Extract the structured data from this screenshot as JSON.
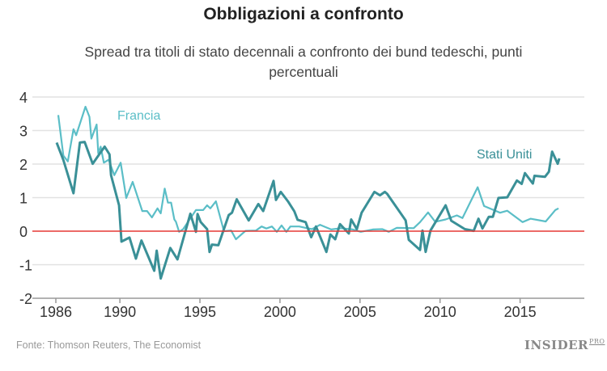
{
  "title": "Obbligazioni a confronto",
  "subtitle": "Spread tra titoli di stato decennali a confronto dei bund tedeschi, punti percentuali",
  "source": "Fonte: Thomson Reuters, The Economist",
  "logo": {
    "main": "INSIDER",
    "suffix": "PRO"
  },
  "chart_data": {
    "type": "line",
    "title": "Obbligazioni a confronto",
    "subtitle": "Spread tra titoli di stato decennali a confronto dei bund tedeschi, punti percentuali",
    "xlim": [
      1985.6,
      2019.5
    ],
    "ylim": [
      -2,
      4
    ],
    "x_ticks": [
      1986,
      1990,
      1995,
      2000,
      2005,
      2010,
      2015
    ],
    "x_tick_labels": [
      "1986",
      "1990",
      "1995",
      "2000",
      "2005",
      "2010",
      "2015"
    ],
    "y_ticks": [
      -2,
      -1,
      0,
      1,
      2,
      3,
      4
    ],
    "y_tick_labels": [
      "-2",
      "-1",
      "0",
      "1",
      "2",
      "3",
      "4"
    ],
    "grid": "horizontal",
    "reference_line": {
      "y": 0,
      "color": "#e53935"
    },
    "series": [
      {
        "name": "Francia",
        "color": "#5bbec7",
        "points": [
          [
            1986.15,
            3.46
          ],
          [
            1986.47,
            2.25
          ],
          [
            1986.75,
            2.08
          ],
          [
            1987.1,
            3.04
          ],
          [
            1987.27,
            2.86
          ],
          [
            1987.85,
            3.71
          ],
          [
            1988.1,
            3.41
          ],
          [
            1988.22,
            2.76
          ],
          [
            1988.55,
            3.18
          ],
          [
            1988.65,
            2.32
          ],
          [
            1988.8,
            2.52
          ],
          [
            1989.0,
            2.04
          ],
          [
            1989.3,
            2.13
          ],
          [
            1989.65,
            1.67
          ],
          [
            1990.05,
            2.04
          ],
          [
            1990.4,
            0.99
          ],
          [
            1990.8,
            1.47
          ],
          [
            1991.4,
            0.6
          ],
          [
            1991.7,
            0.6
          ],
          [
            1992.0,
            0.41
          ],
          [
            1992.35,
            0.68
          ],
          [
            1992.55,
            0.53
          ],
          [
            1992.8,
            1.27
          ],
          [
            1993.0,
            0.85
          ],
          [
            1993.2,
            0.85
          ],
          [
            1993.4,
            0.35
          ],
          [
            1993.5,
            0.28
          ],
          [
            1993.7,
            -0.02
          ],
          [
            1993.95,
            0.06
          ],
          [
            1994.75,
            0.63
          ],
          [
            1995.2,
            0.63
          ],
          [
            1995.45,
            0.77
          ],
          [
            1995.65,
            0.68
          ],
          [
            1996.0,
            0.89
          ],
          [
            1996.5,
            0.0
          ],
          [
            1996.95,
            0.02
          ],
          [
            1997.25,
            -0.24
          ],
          [
            1997.85,
            0.01
          ],
          [
            1998.5,
            0.02
          ],
          [
            1998.85,
            0.14
          ],
          [
            1999.15,
            0.08
          ],
          [
            1999.5,
            0.14
          ],
          [
            1999.8,
            -0.02
          ],
          [
            2000.1,
            0.17
          ],
          [
            2000.4,
            -0.02
          ],
          [
            2000.65,
            0.14
          ],
          [
            2001.2,
            0.14
          ],
          [
            2001.6,
            0.1
          ],
          [
            2002.0,
            0.06
          ],
          [
            2002.5,
            0.19
          ],
          [
            2003.2,
            0.05
          ],
          [
            2003.8,
            0.09
          ],
          [
            2004.55,
            0.05
          ],
          [
            2005.05,
            -0.02
          ],
          [
            2005.8,
            0.05
          ],
          [
            2006.4,
            0.06
          ],
          [
            2006.8,
            -0.02
          ],
          [
            2007.3,
            0.1
          ],
          [
            2008.35,
            0.09
          ],
          [
            2008.75,
            0.27
          ],
          [
            2009.25,
            0.56
          ],
          [
            2009.7,
            0.28
          ],
          [
            2010.35,
            0.35
          ],
          [
            2011.05,
            0.47
          ],
          [
            2011.4,
            0.39
          ],
          [
            2012.35,
            1.31
          ],
          [
            2012.75,
            0.75
          ],
          [
            2013.75,
            0.55
          ],
          [
            2014.2,
            0.61
          ],
          [
            2015.15,
            0.27
          ],
          [
            2015.65,
            0.37
          ],
          [
            2016.6,
            0.29
          ],
          [
            2017.2,
            0.63
          ],
          [
            2017.4,
            0.68
          ]
        ]
      },
      {
        "name": "Stati Uniti",
        "color": "#3a9097",
        "points": [
          [
            1986.05,
            2.64
          ],
          [
            1986.47,
            2.12
          ],
          [
            1987.1,
            1.13
          ],
          [
            1987.5,
            2.64
          ],
          [
            1987.8,
            2.66
          ],
          [
            1988.3,
            2.01
          ],
          [
            1989.05,
            2.52
          ],
          [
            1989.35,
            2.29
          ],
          [
            1989.45,
            1.67
          ],
          [
            1989.95,
            0.77
          ],
          [
            1990.1,
            -0.31
          ],
          [
            1990.6,
            -0.19
          ],
          [
            1991.0,
            -0.82
          ],
          [
            1991.35,
            -0.28
          ],
          [
            1992.15,
            -1.18
          ],
          [
            1992.3,
            -0.58
          ],
          [
            1992.55,
            -1.41
          ],
          [
            1993.15,
            -0.5
          ],
          [
            1993.6,
            -0.84
          ],
          [
            1994.4,
            0.52
          ],
          [
            1994.75,
            -0.02
          ],
          [
            1994.85,
            0.51
          ],
          [
            1995.05,
            0.27
          ],
          [
            1995.45,
            0.06
          ],
          [
            1995.6,
            -0.62
          ],
          [
            1995.75,
            -0.4
          ],
          [
            1996.15,
            -0.42
          ],
          [
            1996.8,
            0.48
          ],
          [
            1997.0,
            0.55
          ],
          [
            1997.3,
            0.95
          ],
          [
            1998.05,
            0.32
          ],
          [
            1998.65,
            0.81
          ],
          [
            1998.95,
            0.6
          ],
          [
            1999.6,
            1.5
          ],
          [
            1999.75,
            0.93
          ],
          [
            2000.05,
            1.17
          ],
          [
            2000.5,
            0.89
          ],
          [
            2000.9,
            0.59
          ],
          [
            2001.1,
            0.34
          ],
          [
            2001.6,
            0.27
          ],
          [
            2001.95,
            -0.18
          ],
          [
            2002.25,
            0.14
          ],
          [
            2002.9,
            -0.62
          ],
          [
            2003.15,
            -0.1
          ],
          [
            2003.45,
            -0.24
          ],
          [
            2003.75,
            0.21
          ],
          [
            2004.3,
            -0.07
          ],
          [
            2004.45,
            0.35
          ],
          [
            2004.8,
            0.06
          ],
          [
            2005.1,
            0.55
          ],
          [
            2005.9,
            1.17
          ],
          [
            2006.25,
            1.07
          ],
          [
            2006.55,
            1.17
          ],
          [
            2006.7,
            1.11
          ],
          [
            2007.85,
            0.32
          ],
          [
            2008.05,
            -0.26
          ],
          [
            2008.75,
            -0.56
          ],
          [
            2008.9,
            0.02
          ],
          [
            2009.1,
            -0.62
          ],
          [
            2009.4,
            0.02
          ],
          [
            2010.35,
            0.77
          ],
          [
            2010.7,
            0.31
          ],
          [
            2011.55,
            0.06
          ],
          [
            2012.1,
            0.01
          ],
          [
            2012.4,
            0.37
          ],
          [
            2012.65,
            0.08
          ],
          [
            2013.05,
            0.43
          ],
          [
            2013.3,
            0.43
          ],
          [
            2013.65,
            0.99
          ],
          [
            2014.2,
            1.01
          ],
          [
            2014.8,
            1.51
          ],
          [
            2015.1,
            1.41
          ],
          [
            2015.3,
            1.73
          ],
          [
            2015.8,
            1.42
          ],
          [
            2015.9,
            1.65
          ],
          [
            2016.55,
            1.62
          ],
          [
            2016.8,
            1.77
          ],
          [
            2017.0,
            2.37
          ],
          [
            2017.35,
            2.01
          ],
          [
            2017.45,
            2.17
          ]
        ]
      }
    ]
  }
}
